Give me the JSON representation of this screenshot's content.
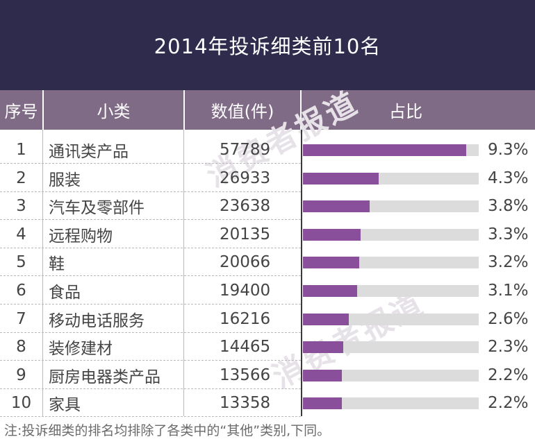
{
  "title": "2014年投诉细类前10名",
  "headers": {
    "rank": "序号",
    "category": "小类",
    "count": "数值(件)",
    "share": "占比"
  },
  "watermark": "消费者报道",
  "colors": {
    "title_bg": "#2e2b4d",
    "header_bg": "#806b86",
    "bar": "#8a4f9b",
    "bar_track": "#dcdcdc"
  },
  "footnote": "注:投诉细类的排名均排除了各类中的“其他”类别,下同。",
  "chart_data": {
    "type": "table",
    "title": "2014年投诉细类前10名",
    "columns": [
      "序号",
      "小类",
      "数值(件)",
      "占比"
    ],
    "rows": [
      {
        "rank": "1",
        "category": "通讯类产品",
        "count": "57789",
        "share_label": "9.3%",
        "share": 9.3
      },
      {
        "rank": "2",
        "category": "服装",
        "count": "26933",
        "share_label": "4.3%",
        "share": 4.3
      },
      {
        "rank": "3",
        "category": "汽车及零部件",
        "count": "23638",
        "share_label": "3.8%",
        "share": 3.8
      },
      {
        "rank": "4",
        "category": "远程购物",
        "count": "20135",
        "share_label": "3.3%",
        "share": 3.3
      },
      {
        "rank": "5",
        "category": "鞋",
        "count": "20066",
        "share_label": "3.2%",
        "share": 3.2
      },
      {
        "rank": "6",
        "category": "食品",
        "count": "19400",
        "share_label": "3.1%",
        "share": 3.1
      },
      {
        "rank": "7",
        "category": "移动电话服务",
        "count": "16216",
        "share_label": "2.6%",
        "share": 2.6
      },
      {
        "rank": "8",
        "category": "装修建材",
        "count": "14465",
        "share_label": "2.3%",
        "share": 2.3
      },
      {
        "rank": "9",
        "category": "厨房电器类产品",
        "count": "13566",
        "share_label": "2.2%",
        "share": 2.2
      },
      {
        "rank": "10",
        "category": "家具",
        "count": "13358",
        "share_label": "2.2%",
        "share": 2.2
      }
    ],
    "bar_max": 10
  }
}
